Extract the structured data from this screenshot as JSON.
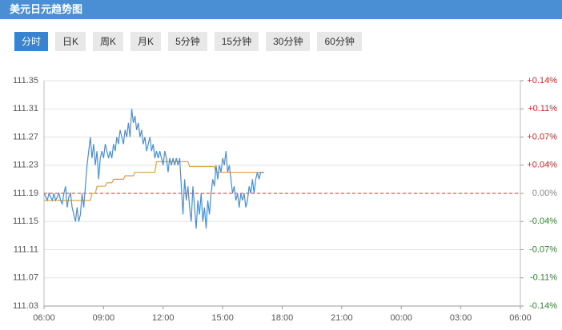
{
  "header": {
    "title": "美元日元趋势图"
  },
  "tabs": [
    "分时",
    "日K",
    "周K",
    "月K",
    "5分钟",
    "15分钟",
    "30分钟",
    "60分钟"
  ],
  "active_tab": 0,
  "chart_data": {
    "type": "line",
    "x": [
      360,
      365,
      370,
      375,
      380,
      385,
      390,
      395,
      400,
      405,
      410,
      415,
      420,
      425,
      430,
      435,
      440,
      445,
      450,
      455,
      460,
      465,
      470,
      475,
      480,
      485,
      490,
      495,
      500,
      505,
      510,
      515,
      520,
      525,
      530,
      535,
      540,
      545,
      550,
      555,
      560,
      565,
      570,
      575,
      580,
      585,
      590,
      595,
      600,
      605,
      610,
      615,
      620,
      625,
      630,
      635,
      640,
      645,
      650,
      655,
      660,
      665,
      670,
      675,
      680,
      685,
      690,
      695,
      700,
      705,
      710,
      715,
      720,
      725,
      730,
      735,
      740,
      745,
      750,
      755,
      760,
      765,
      770,
      775,
      780,
      785,
      790,
      795,
      800,
      805,
      810,
      815,
      820,
      825,
      830,
      835,
      840,
      845,
      850,
      855,
      860,
      865,
      870,
      875,
      880,
      885,
      890,
      895,
      900,
      905,
      910,
      915,
      920,
      925,
      930,
      935,
      940,
      945,
      950,
      955,
      960,
      965,
      970,
      975,
      980,
      985,
      990,
      995,
      1000,
      1005,
      1010,
      1015,
      1020,
      1025
    ],
    "series": [
      {
        "color": "#4a8fd8",
        "values": [
          111.19,
          111.185,
          111.18,
          111.19,
          111.185,
          111.18,
          111.19,
          111.18,
          111.185,
          111.19,
          111.18,
          111.175,
          111.19,
          111.2,
          111.17,
          111.185,
          111.19,
          111.17,
          111.16,
          111.15,
          111.17,
          111.15,
          111.16,
          111.19,
          111.17,
          111.2,
          111.23,
          111.25,
          111.27,
          111.24,
          111.26,
          111.23,
          111.25,
          111.21,
          111.24,
          111.25,
          111.24,
          111.26,
          111.25,
          111.24,
          111.25,
          111.24,
          111.26,
          111.25,
          111.27,
          111.26,
          111.28,
          111.27,
          111.26,
          111.28,
          111.27,
          111.29,
          111.27,
          111.31,
          111.29,
          111.3,
          111.28,
          111.29,
          111.27,
          111.28,
          111.26,
          111.27,
          111.25,
          111.26,
          111.27,
          111.25,
          111.26,
          111.24,
          111.25,
          111.24,
          111.25,
          111.24,
          111.23,
          111.25,
          111.24,
          111.22,
          111.24,
          111.23,
          111.24,
          111.23,
          111.24,
          111.23,
          111.24,
          111.2,
          111.16,
          111.21,
          111.18,
          111.2,
          111.17,
          111.15,
          111.2,
          111.17,
          111.14,
          111.18,
          111.16,
          111.19,
          111.15,
          111.17,
          111.14,
          111.18,
          111.16,
          111.19,
          111.21,
          111.2,
          111.23,
          111.21,
          111.23,
          111.22,
          111.24,
          111.23,
          111.25,
          111.22,
          111.23,
          111.21,
          111.19,
          111.2,
          111.18,
          111.19,
          111.17,
          111.19,
          111.18,
          111.19,
          111.17,
          111.18,
          111.2,
          111.19,
          111.21,
          111.19,
          111.21,
          111.22,
          111.21,
          111.22,
          111.22,
          111.22
        ]
      },
      {
        "color": "#e0a040",
        "values": [
          111.18,
          111.18,
          111.18,
          111.18,
          111.18,
          111.18,
          111.18,
          111.18,
          111.18,
          111.18,
          111.18,
          111.18,
          111.18,
          111.18,
          111.18,
          111.18,
          111.18,
          111.18,
          111.18,
          111.18,
          111.18,
          111.18,
          111.18,
          111.18,
          111.18,
          111.18,
          111.18,
          111.18,
          111.18,
          111.19,
          111.19,
          111.19,
          111.2,
          111.2,
          111.2,
          111.2,
          111.2,
          111.2,
          111.205,
          111.205,
          111.205,
          111.205,
          111.21,
          111.21,
          111.21,
          111.21,
          111.21,
          111.21,
          111.21,
          111.215,
          111.215,
          111.215,
          111.215,
          111.215,
          111.215,
          111.22,
          111.22,
          111.22,
          111.22,
          111.22,
          111.22,
          111.22,
          111.22,
          111.22,
          111.22,
          111.22,
          111.22,
          111.22,
          111.235,
          111.235,
          111.235,
          111.235,
          111.235,
          111.235,
          111.235,
          111.235,
          111.235,
          111.235,
          111.235,
          111.235,
          111.235,
          111.235,
          111.235,
          111.235,
          111.235,
          111.235,
          111.235,
          111.235,
          111.228,
          111.228,
          111.228,
          111.228,
          111.228,
          111.228,
          111.228,
          111.228,
          111.228,
          111.228,
          111.228,
          111.228,
          111.228,
          111.228,
          111.228,
          111.228,
          111.22,
          111.22,
          111.22,
          111.22,
          111.22,
          111.22,
          111.22,
          111.22,
          111.22,
          111.22,
          111.22,
          111.22,
          111.22,
          111.22,
          111.22,
          111.22,
          111.22,
          111.22,
          111.22,
          111.22,
          111.22,
          111.22,
          111.22,
          111.22,
          111.22,
          111.22,
          111.22,
          111.22,
          111.22,
          111.22
        ]
      }
    ],
    "xlim": [
      360,
      1800
    ],
    "xticks": [
      {
        "value": 360,
        "label": "06:00"
      },
      {
        "value": 540,
        "label": "09:00"
      },
      {
        "value": 720,
        "label": "12:00"
      },
      {
        "value": 900,
        "label": "15:00"
      },
      {
        "value": 1080,
        "label": "18:00"
      },
      {
        "value": 1260,
        "label": "21:00"
      },
      {
        "value": 1440,
        "label": "00:00"
      },
      {
        "value": 1620,
        "label": "03:00"
      },
      {
        "value": 1800,
        "label": "06:00"
      }
    ],
    "ylim": [
      111.03,
      111.35
    ],
    "yticks": [
      111.35,
      111.31,
      111.27,
      111.23,
      111.19,
      111.15,
      111.11,
      111.07,
      111.03
    ],
    "y2lim": [
      -0.144,
      0.144
    ],
    "y2ticks": [
      {
        "value": 0.144,
        "label": "+0.14%"
      },
      {
        "value": 0.108,
        "label": "+0.11%"
      },
      {
        "value": 0.072,
        "label": "+0.07%"
      },
      {
        "value": 0.036,
        "label": "+0.04%"
      },
      {
        "value": 0,
        "label": "0.00%"
      },
      {
        "value": -0.036,
        "label": "-0.04%"
      },
      {
        "value": -0.072,
        "label": "-0.07%"
      },
      {
        "value": -0.108,
        "label": "-0.11%"
      },
      {
        "value": -0.144,
        "label": "-0.14%"
      }
    ],
    "reference_line": 111.19,
    "grid": true
  }
}
